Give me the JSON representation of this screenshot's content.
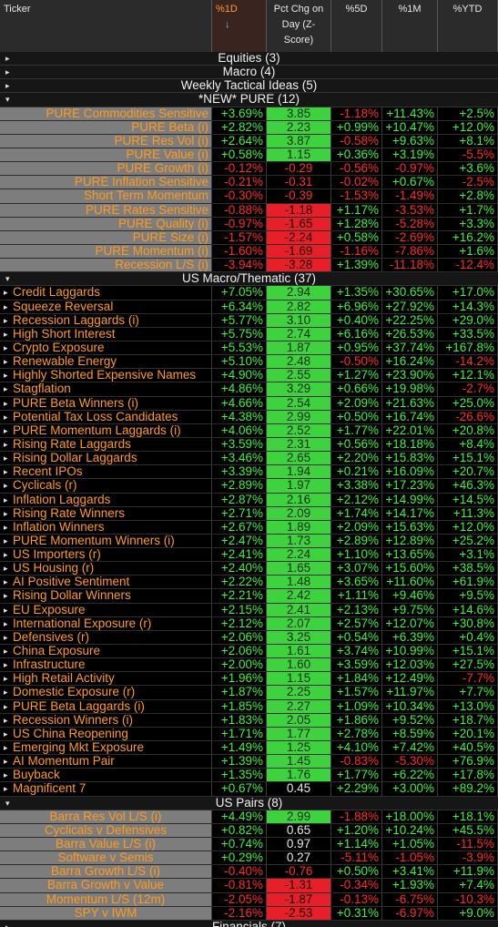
{
  "header": {
    "columns": [
      "Ticker",
      "%1D",
      "Pct Chg on Day (Z-Score)",
      "%5D",
      "%1M",
      "%YTD"
    ],
    "sort_indicator": "↓"
  },
  "groups_before": [
    "Equities (3)",
    "Macro (4)",
    "Weekly Tactical Ideas (5)"
  ],
  "sections": [
    {
      "title": "*NEW* PURE (12)",
      "rows": [
        [
          "PURE Commodities Sensitive",
          "+3.69%",
          "3.85",
          "-1.18%",
          "+11.43%",
          "+2.5%"
        ],
        [
          "PURE Beta (i)",
          "+2.82%",
          "2.23",
          "+0.99%",
          "+10.47%",
          "+12.0%"
        ],
        [
          "PURE Res Vol (i)",
          "+2.64%",
          "3.87",
          "-0.58%",
          "+9.63%",
          "+8.1%"
        ],
        [
          "PURE Value (i)",
          "+0.58%",
          "1.15",
          "+0.36%",
          "+3.19%",
          "-5.5%"
        ],
        [
          "PURE Growth (i)",
          "-0.12%",
          "-0.29",
          "-0.56%",
          "-0.97%",
          "+3.6%"
        ],
        [
          "PURE Inflation Sensitive",
          "-0.21%",
          "-0.31",
          "-0.02%",
          "+0.67%",
          "-2.5%"
        ],
        [
          "Short Term Momentum",
          "-0.30%",
          "-0.39",
          "-1.53%",
          "-1.49%",
          "+2.8%"
        ],
        [
          "PURE Rates Sensitive",
          "-0.88%",
          "-1.18",
          "+1.17%",
          "-3.53%",
          "+1.7%"
        ],
        [
          "PURE Quality (i)",
          "-0.97%",
          "-1.65",
          "+1.28%",
          "-5.28%",
          "+3.3%"
        ],
        [
          "PURE Size (i)",
          "-1.57%",
          "-2.24",
          "+0.58%",
          "-2.69%",
          "+16.2%"
        ],
        [
          "PURE Momentum (i)",
          "-1.60%",
          "-1.69",
          "-1.16%",
          "-7.86%",
          "+1.6%"
        ],
        [
          "Recession L/S (i)",
          "-3.94%",
          "-3.28",
          "+1.39%",
          "-11.18%",
          "-12.4%"
        ]
      ]
    },
    {
      "title": "US Macro/Thematic (37)",
      "rows": [
        [
          "Credit Laggards",
          "+7.05%",
          "2.94",
          "+1.35%",
          "+30.65%",
          "+17.0%"
        ],
        [
          "Squeeze Reversal",
          "+6.34%",
          "2.82",
          "+6.96%",
          "+27.92%",
          "+14.3%"
        ],
        [
          "Recession Laggards (i)",
          "+5.77%",
          "3.10",
          "+0.40%",
          "+22.25%",
          "+29.0%"
        ],
        [
          "High Short Interest",
          "+5.75%",
          "2.74",
          "+6.16%",
          "+26.53%",
          "+33.5%"
        ],
        [
          "Crypto Exposure",
          "+5.53%",
          "1.87",
          "+0.95%",
          "+37.74%",
          "+167.8%"
        ],
        [
          "Renewable Energy",
          "+5.10%",
          "2.48",
          "-0.50%",
          "+16.24%",
          "-14.2%"
        ],
        [
          "Highly Shorted Expensive Names",
          "+4.90%",
          "2.55",
          "+1.27%",
          "+23.90%",
          "+12.1%"
        ],
        [
          "Stagflation",
          "+4.86%",
          "3.29",
          "+0.66%",
          "+19.98%",
          "-2.7%"
        ],
        [
          "PURE Beta Winners (i)",
          "+4.66%",
          "2.54",
          "+2.09%",
          "+21.63%",
          "+25.0%"
        ],
        [
          "Potential Tax Loss Candidates",
          "+4.38%",
          "2.99",
          "+0.50%",
          "+16.74%",
          "-26.6%"
        ],
        [
          "PURE Momentum Laggards (i)",
          "+4.06%",
          "2.52",
          "+1.77%",
          "+22.01%",
          "+20.8%"
        ],
        [
          "Rising Rate Laggards",
          "+3.59%",
          "2.31",
          "+0.56%",
          "+18.18%",
          "+8.4%"
        ],
        [
          "Rising Dollar Laggards",
          "+3.46%",
          "2.65",
          "+2.20%",
          "+15.83%",
          "+15.1%"
        ],
        [
          "Recent IPOs",
          "+3.39%",
          "1.94",
          "+0.21%",
          "+16.09%",
          "+20.7%"
        ],
        [
          "Cyclicals (r)",
          "+2.89%",
          "1.97",
          "+3.38%",
          "+17.23%",
          "+46.3%"
        ],
        [
          "Inflation Laggards",
          "+2.87%",
          "2.16",
          "+2.12%",
          "+14.99%",
          "+14.5%"
        ],
        [
          "Rising Rate Winners",
          "+2.71%",
          "2.09",
          "+1.74%",
          "+14.17%",
          "+11.3%"
        ],
        [
          "Inflation Winners",
          "+2.67%",
          "1.89",
          "+2.09%",
          "+15.63%",
          "+12.0%"
        ],
        [
          "PURE Momentum Winners (i)",
          "+2.47%",
          "1.73",
          "+2.89%",
          "+12.89%",
          "+25.2%"
        ],
        [
          "US Importers (r)",
          "+2.41%",
          "2.24",
          "+1.10%",
          "+13.65%",
          "+3.1%"
        ],
        [
          "US Housing (r)",
          "+2.40%",
          "1.65",
          "+3.07%",
          "+15.60%",
          "+38.5%"
        ],
        [
          "AI Positive Sentiment",
          "+2.22%",
          "1.48",
          "+3.65%",
          "+11.60%",
          "+61.9%"
        ],
        [
          "Rising Dollar Winners",
          "+2.21%",
          "2.42",
          "+1.11%",
          "+9.46%",
          "+9.5%"
        ],
        [
          "EU Exposure",
          "+2.15%",
          "2.41",
          "+2.13%",
          "+9.75%",
          "+14.6%"
        ],
        [
          "International Exposure (r)",
          "+2.12%",
          "2.07",
          "+2.57%",
          "+12.07%",
          "+30.8%"
        ],
        [
          "Defensives (r)",
          "+2.06%",
          "3.25",
          "+0.54%",
          "+6.39%",
          "+0.4%"
        ],
        [
          "China Exposure",
          "+2.06%",
          "1.61",
          "+3.74%",
          "+10.99%",
          "+15.1%"
        ],
        [
          "Infrastructure",
          "+2.00%",
          "1.60",
          "+3.59%",
          "+12.03%",
          "+27.5%"
        ],
        [
          "High Retail Activity",
          "+1.96%",
          "1.15",
          "+1.84%",
          "+12.49%",
          "-7.7%"
        ],
        [
          "Domestic Exposure (r)",
          "+1.87%",
          "2.25",
          "+1.57%",
          "+11.97%",
          "+7.7%"
        ],
        [
          "PURE Beta Laggards (i)",
          "+1.85%",
          "2.27",
          "+1.09%",
          "+10.34%",
          "+13.0%"
        ],
        [
          "Recession Winners (i)",
          "+1.83%",
          "2.05",
          "+1.86%",
          "+9.52%",
          "+18.7%"
        ],
        [
          "US China Reopening",
          "+1.71%",
          "1.77",
          "+2.78%",
          "+8.59%",
          "+20.1%"
        ],
        [
          "Emerging Mkt Exposure",
          "+1.49%",
          "1.25",
          "+4.10%",
          "+7.42%",
          "+40.5%"
        ],
        [
          "AI Momentum Pair",
          "+1.39%",
          "1.45",
          "-0.83%",
          "-5.30%",
          "+76.9%"
        ],
        [
          "Buyback",
          "+1.35%",
          "1.76",
          "+1.77%",
          "+6.22%",
          "+17.8%"
        ],
        [
          "Magnificent 7",
          "+0.67%",
          "0.45",
          "+2.29%",
          "+3.00%",
          "+89.2%"
        ]
      ]
    },
    {
      "title": "US Pairs (8)",
      "rows": [
        [
          "Barra Res Vol L/S (i)",
          "+4.49%",
          "2.99",
          "-1.88%",
          "+18.00%",
          "+18.1%"
        ],
        [
          "Cyclicals v Defensives",
          "+0.82%",
          "0.65",
          "+1.20%",
          "+10.24%",
          "+45.5%"
        ],
        [
          "Barra Value L/S (i)",
          "+0.74%",
          "0.97",
          "+1.14%",
          "+1.05%",
          "-11.5%"
        ],
        [
          "Software v Semis",
          "+0.29%",
          "0.27",
          "-5.11%",
          "-1.05%",
          "-3.9%"
        ],
        [
          "Barra Growth L/S (i)",
          "-0.40%",
          "-0.76",
          "+0.50%",
          "+3.41%",
          "+11.9%"
        ],
        [
          "Barra Growth v Value",
          "-0.81%",
          "-1.31",
          "-0.34%",
          "+1.93%",
          "+7.4%"
        ],
        [
          "Momentum L/S (12m)",
          "-2.05%",
          "-1.87",
          "-0.13%",
          "-6.75%",
          "-10.3%"
        ],
        [
          "SPY v IWM",
          "-2.16%",
          "-2.53",
          "+0.31%",
          "-6.97%",
          "+9.0%"
        ]
      ]
    }
  ],
  "groups_after": [
    "Financials (7)"
  ]
}
